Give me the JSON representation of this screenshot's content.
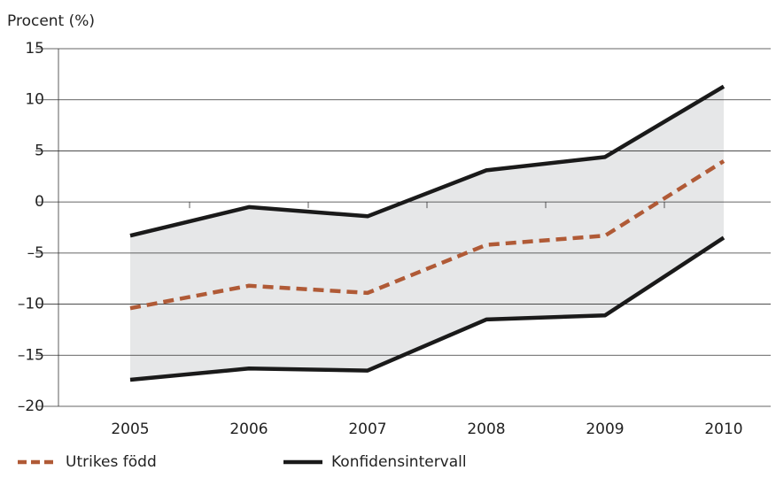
{
  "chart_data": {
    "type": "line",
    "title": "Procent (%)",
    "categories": [
      "2005",
      "2006",
      "2007",
      "2008",
      "2009",
      "2010"
    ],
    "series": [
      {
        "name": "Utrikes född",
        "color": "#b05a36",
        "dash": true,
        "values": [
          -10.4,
          -8.2,
          -8.9,
          -4.2,
          -3.3,
          4.0
        ]
      },
      {
        "name": "Konfidensintervall",
        "color": "#1a1a1a",
        "band_color": "#e6e7e8",
        "upper": [
          -3.3,
          -0.5,
          -1.4,
          3.1,
          4.4,
          11.3
        ],
        "lower": [
          -17.4,
          -16.3,
          -16.5,
          -11.5,
          -11.1,
          -3.5
        ]
      }
    ],
    "ylim": [
      -20,
      15
    ],
    "yticks": [
      {
        "value": -20,
        "label": "–20"
      },
      {
        "value": -15,
        "label": "–15"
      },
      {
        "value": -10,
        "label": "–10"
      },
      {
        "value": -5,
        "label": "–5"
      },
      0,
      5,
      10,
      15
    ],
    "grid": true
  }
}
